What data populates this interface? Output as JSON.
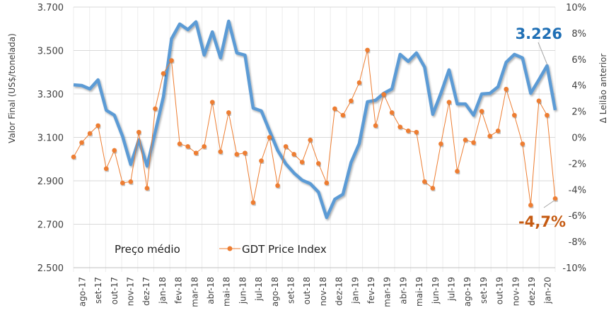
{
  "chart_data": {
    "type": "line",
    "ylabel_left": "Valor Final (US$/tonelada)",
    "ylabel_right": "Δ Leilão anterior",
    "ylim_left": [
      2500,
      3700
    ],
    "ylim_right": [
      -10,
      10
    ],
    "yticks_left": [
      "2.500",
      "2.700",
      "2.900",
      "3.100",
      "3.300",
      "3.500",
      "3.700"
    ],
    "yticks_right": [
      "-10%",
      "-8%",
      "-6%",
      "-4%",
      "-2%",
      "0%",
      "2%",
      "4%",
      "6%",
      "8%",
      "10%"
    ],
    "xtick_labels": [
      "ago-17",
      "set-17",
      "out-17",
      "nov-17",
      "dez-17",
      "jan-18",
      "fev-18",
      "mar-18",
      "abr-18",
      "mai-18",
      "jun-18",
      "jul-18",
      "ago-18",
      "set-18",
      "out-18",
      "nov-18",
      "dez-18",
      "jan-19",
      "fev-19",
      "mar-19",
      "abr-19",
      "mai-19",
      "jun-19",
      "jul-19",
      "ago-19",
      "set-19",
      "out-19",
      "nov-19",
      "dez-19",
      "jan-20"
    ],
    "grid": true,
    "legend_position": "bottom-left",
    "series": [
      {
        "name": "Preço médio",
        "axis": "left",
        "color": "#5b9bd5",
        "values": [
          3342,
          3339,
          3323,
          3365,
          3225,
          3202,
          3105,
          2975,
          3089,
          2968,
          3124,
          3287,
          3554,
          3622,
          3596,
          3632,
          3479,
          3586,
          3466,
          3635,
          3489,
          3479,
          3235,
          3222,
          3131,
          3040,
          2978,
          2936,
          2903,
          2887,
          2848,
          2731,
          2815,
          2838,
          2985,
          3072,
          3264,
          3271,
          3303,
          3323,
          3482,
          3450,
          3489,
          3424,
          3206,
          3303,
          3411,
          3254,
          3254,
          3202,
          3300,
          3303,
          3333,
          3446,
          3482,
          3466,
          3303,
          3365,
          3430,
          3226
        ]
      },
      {
        "name": "GDT Price Index",
        "axis": "right",
        "color": "#ed7d31",
        "unit": "%",
        "values": [
          -1.5,
          -0.4,
          0.3,
          0.9,
          -2.4,
          -1.0,
          -3.5,
          -3.4,
          0.4,
          -3.9,
          2.2,
          4.9,
          5.9,
          -0.5,
          -0.7,
          -1.2,
          -0.7,
          2.7,
          -1.1,
          1.9,
          -1.3,
          -1.2,
          -5.0,
          -1.8,
          0.0,
          -3.7,
          -0.7,
          -1.3,
          -1.9,
          -0.2,
          -2.0,
          -3.5,
          2.2,
          1.7,
          2.8,
          4.2,
          6.7,
          0.9,
          3.3,
          1.9,
          0.8,
          0.5,
          0.4,
          -3.4,
          -3.9,
          -0.5,
          2.7,
          -2.6,
          -0.2,
          -0.4,
          2.0,
          0.1,
          0.5,
          3.7,
          1.7,
          -0.5,
          -5.2,
          2.8,
          1.7,
          -4.7
        ]
      }
    ],
    "annotations": [
      {
        "text": "3.226",
        "series": "Preço médio",
        "color": "#1f6fb5"
      },
      {
        "text": "-4,7%",
        "series": "GDT Price Index",
        "color": "#c55a11"
      }
    ]
  }
}
